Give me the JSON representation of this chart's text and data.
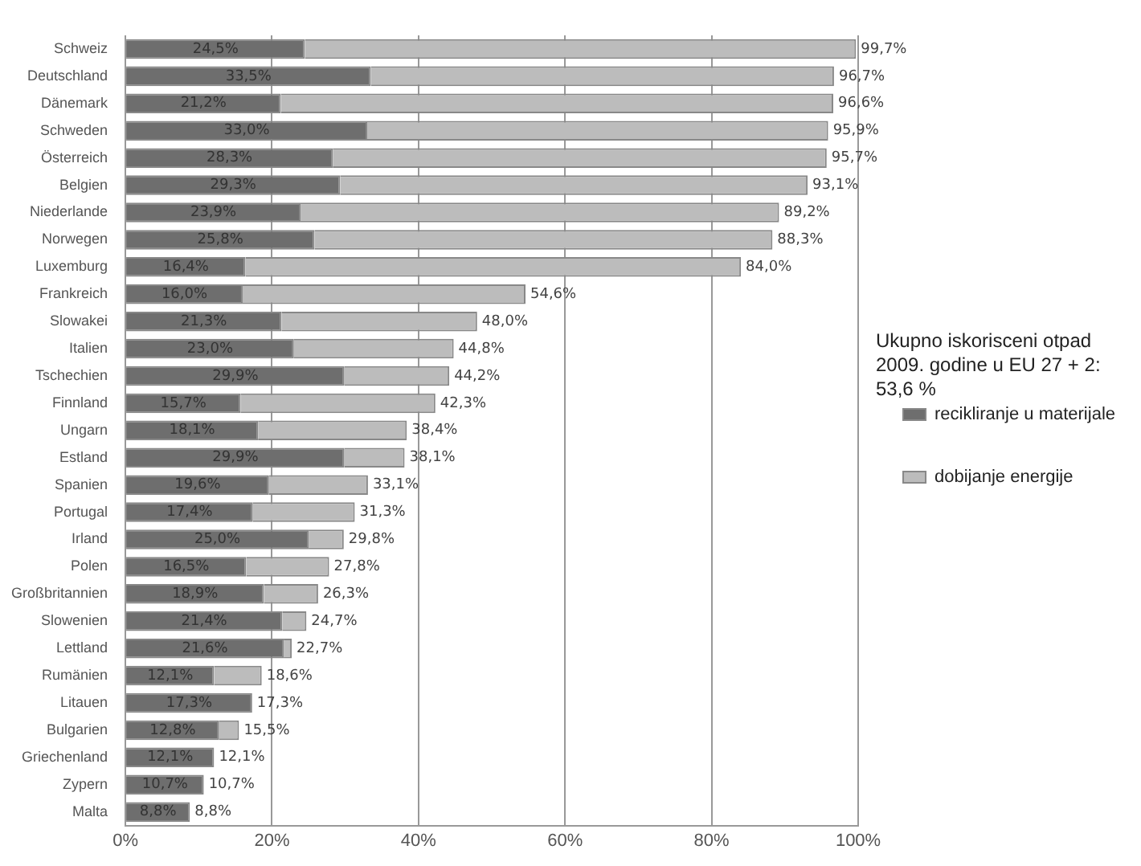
{
  "chart_data": {
    "type": "bar",
    "orientation": "horizontal",
    "stacked": true,
    "categories": [
      "Schweiz",
      "Deutschland",
      "Dänemark",
      "Schweden",
      "Österreich",
      "Belgien",
      "Niederlande",
      "Norwegen",
      "Luxemburg",
      "Frankreich",
      "Slowakei",
      "Italien",
      "Tschechien",
      "Finnland",
      "Ungarn",
      "Estland",
      "Spanien",
      "Portugal",
      "Irland",
      "Polen",
      "Großbritannien",
      "Slowenien",
      "Lettland",
      "Rumänien",
      "Litauen",
      "Bulgarien",
      "Griechenland",
      "Zypern",
      "Malta"
    ],
    "series": [
      {
        "name": "recikliranje u materijale",
        "color": "#6e6e6e",
        "values": [
          24.5,
          33.5,
          21.2,
          33.0,
          28.3,
          29.3,
          23.9,
          25.8,
          16.4,
          16.0,
          21.3,
          23.0,
          29.9,
          15.7,
          18.1,
          29.9,
          19.6,
          17.4,
          25.0,
          16.5,
          18.9,
          21.4,
          21.6,
          12.1,
          17.3,
          12.8,
          12.1,
          10.7,
          8.8
        ],
        "value_labels": [
          "24,5%",
          "33,5%",
          "21,2%",
          "33,0%",
          "28,3%",
          "29,3%",
          "23,9%",
          "25,8%",
          "16,4%",
          "16,0%",
          "21,3%",
          "23,0%",
          "29,9%",
          "15,7%",
          "18,1%",
          "29,9%",
          "19,6%",
          "17,4%",
          "25,0%",
          "16,5%",
          "18,9%",
          "21,4%",
          "21,6%",
          "12,1%",
          "17,3%",
          "12,8%",
          "12,1%",
          "10,7%",
          "8,8%"
        ]
      },
      {
        "name": "dobijanje energije",
        "color": "#bcbcbc",
        "values": [
          75.2,
          63.2,
          75.4,
          62.9,
          67.4,
          63.8,
          65.3,
          62.5,
          67.6,
          38.6,
          26.7,
          21.8,
          14.3,
          26.6,
          20.3,
          8.2,
          13.5,
          13.9,
          4.8,
          11.3,
          7.4,
          3.3,
          1.1,
          6.5,
          0,
          2.7,
          0,
          0,
          0
        ]
      }
    ],
    "totals": [
      "99,7%",
      "96,7%",
      "96,6%",
      "95,9%",
      "95,7%",
      "93,1%",
      "89,2%",
      "88,3%",
      "84,0%",
      "54,6%",
      "48,0%",
      "44,8%",
      "44,2%",
      "42,3%",
      "38,4%",
      "38,1%",
      "33,1%",
      "31,3%",
      "29,8%",
      "27,8%",
      "26,3%",
      "24,7%",
      "22,7%",
      "18,6%",
      "17,3%",
      "15,5%",
      "12,1%",
      "10,7%",
      "8,8%"
    ],
    "xlim": [
      0,
      100
    ],
    "xticks": [
      {
        "value": 0,
        "label": "0%"
      },
      {
        "value": 20,
        "label": "20%"
      },
      {
        "value": 40,
        "label": "40%"
      },
      {
        "value": 60,
        "label": "60%"
      },
      {
        "value": 80,
        "label": "80%"
      },
      {
        "value": 100,
        "label": "100%"
      }
    ],
    "grid": "x",
    "legend": "right",
    "annotations": [
      "Ukupno iskorisceni otpad 2009. godine u EU 27 + 2: 53,6 %"
    ]
  }
}
